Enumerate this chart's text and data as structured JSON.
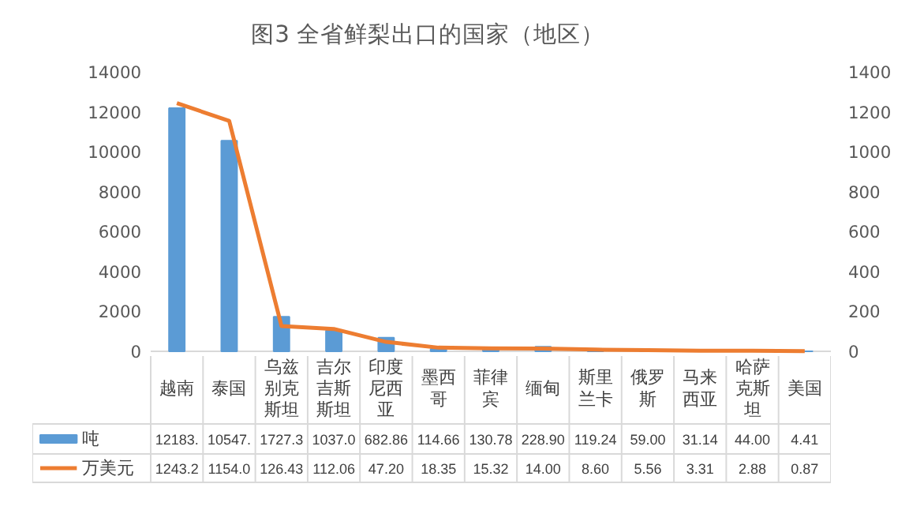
{
  "chart_data": {
    "type": "bar",
    "title": "图3  全省鲜梨出口的国家（地区）",
    "categories": [
      "越南",
      "泰国",
      "乌兹别克斯坦",
      "吉尔吉斯斯坦",
      "印度尼西亚",
      "墨西哥",
      "菲律宾",
      "缅甸",
      "斯里兰卡",
      "俄罗斯",
      "马来西亚",
      "哈萨克斯坦",
      "美国"
    ],
    "series": [
      {
        "name": "吨",
        "color": "#5b9bd5",
        "values": [
          12183,
          10547,
          1727.3,
          1037.0,
          682.86,
          114.66,
          130.78,
          228.9,
          119.24,
          59.0,
          31.14,
          44.0,
          4.41
        ],
        "value_labels": [
          "12183.",
          "10547.",
          "1727.3",
          "1037.0",
          "682.86",
          "114.66",
          "130.78",
          "228.90",
          "119.24",
          "59.00",
          "31.14",
          "44.00",
          "4.41"
        ]
      },
      {
        "name": "万美元",
        "type": "line",
        "axis": "y2",
        "color": "#ed7d31",
        "values": [
          1243.2,
          1154.0,
          126.43,
          112.06,
          47.2,
          18.35,
          15.32,
          14.0,
          8.6,
          5.56,
          3.31,
          2.88,
          0.87
        ],
        "value_labels": [
          "1243.2",
          "1154.0",
          "126.43",
          "112.06",
          "47.20",
          "18.35",
          "15.32",
          "14.00",
          "8.60",
          "5.56",
          "3.31",
          "2.88",
          "0.87"
        ]
      }
    ],
    "ylim": [
      0,
      14000
    ],
    "yticks": [
      0,
      2000,
      4000,
      6000,
      8000,
      10000,
      12000,
      14000
    ],
    "y2lim": [
      0,
      1400
    ],
    "y2ticks": [
      0,
      200,
      400,
      600,
      800,
      1000,
      1200,
      1400
    ],
    "legend": "bottom",
    "line_style": "solid",
    "marker": "none"
  }
}
